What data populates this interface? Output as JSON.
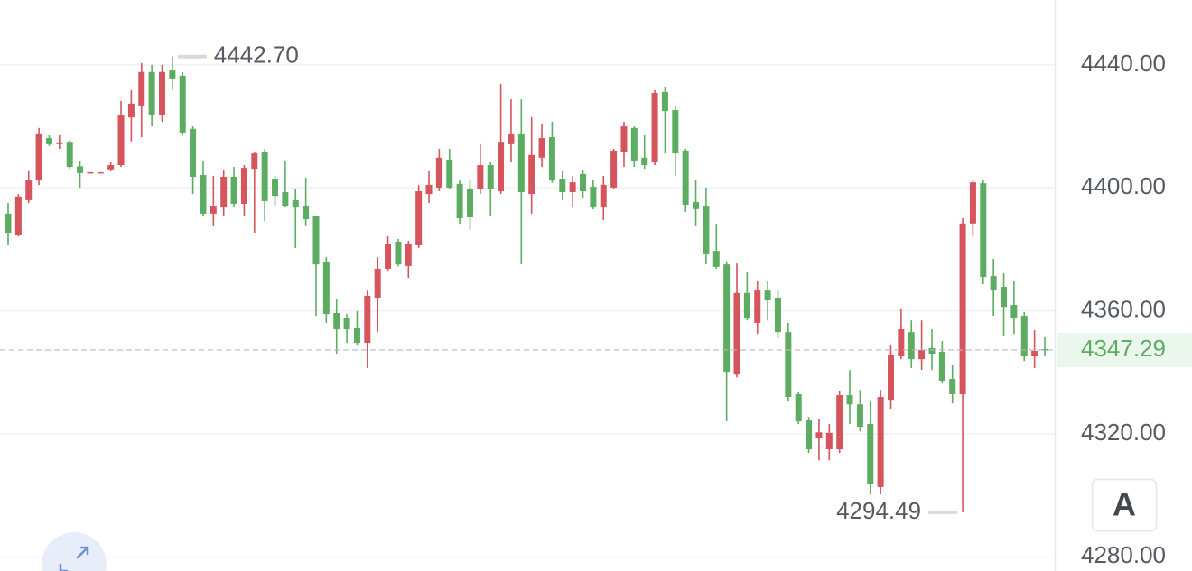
{
  "chart_data": {
    "type": "candlestick",
    "up_color": "#d6545c",
    "down_color": "#5cad62",
    "ylim": [
      4275.4,
      4461.1
    ],
    "yticks": [
      {
        "value": 4440,
        "label": "4440.00"
      },
      {
        "value": 4400,
        "label": "4400.00"
      },
      {
        "value": 4360,
        "label": "4360.00"
      },
      {
        "value": 4320,
        "label": "4320.00"
      },
      {
        "value": 4280,
        "label": "4280.00"
      }
    ],
    "grid": true,
    "last_price": 4347.29,
    "max_label": {
      "value": 4442.7,
      "label": "4442.70"
    },
    "min_label": 4294.49,
    "button_label": "A",
    "open": [
      4391.6,
      4384.8,
      4396.0,
      4402.4,
      4416.2,
      4414.2,
      4415.0,
      4407.0,
      4405.1,
      4405.1,
      4406.0,
      4407.4,
      4422.9,
      4426.8,
      4437.7,
      4423.6,
      4438.2,
      4436.5,
      4419.2,
      4404.2,
      4391.6,
      4393.6,
      4403.6,
      4394.8,
      4406.2,
      4411.8,
      4403.0,
      4398.6,
      4396.0,
      4394.2,
      4390.7,
      4376.0,
      4359.3,
      4357.8,
      4354.3,
      4349.6,
      4364.3,
      4373.7,
      4382.5,
      4374.6,
      4381.3,
      4398.0,
      4400.1,
      4409.2,
      4401.3,
      4399.5,
      4399.5,
      4407.4,
      4398.9,
      4414.2,
      4417.7,
      4398.0,
      4409.8,
      4416.5,
      4403.0,
      4398.6,
      4404.5,
      4400.4,
      4393.6,
      4400.1,
      4411.8,
      4419.5,
      4409.8,
      4408.3,
      4431.2,
      4425.3,
      4412.1,
      4395.4,
      4394.2,
      4379.5,
      4375.1,
      4339.3,
      4365.8,
      4356.1,
      4366.6,
      4364.3,
      4353.1,
      4332.9,
      4324.4,
      4318.5,
      4315.0,
      4315.0,
      4332.6,
      4329.6,
      4323.2,
      4302.7,
      4331.1,
      4345.2,
      4353.1,
      4344.3,
      4347.9,
      4346.7,
      4337.9,
      4332.9,
      4388.4,
      4401.5,
      4371.3,
      4367.8,
      4361.9,
      4358.4,
      4345.2,
      4347.6
    ],
    "close": [
      4385.4,
      4397.2,
      4402.4,
      4417.7,
      4414.2,
      4414.8,
      4406.8,
      4404.8,
      4405.1,
      4405.1,
      4407.4,
      4423.6,
      4427.4,
      4437.7,
      4423.6,
      4437.7,
      4435.3,
      4418.0,
      4403.6,
      4391.6,
      4394.2,
      4403.6,
      4394.8,
      4406.5,
      4411.2,
      4395.7,
      4397.4,
      4394.2,
      4393.6,
      4389.8,
      4375.1,
      4359.0,
      4354.0,
      4354.0,
      4349.6,
      4364.9,
      4373.7,
      4381.9,
      4375.1,
      4381.9,
      4398.9,
      4401.0,
      4409.8,
      4400.1,
      4390.1,
      4390.4,
      4407.4,
      4399.5,
      4415.0,
      4417.7,
      4398.6,
      4410.7,
      4416.2,
      4402.4,
      4398.6,
      4401.8,
      4398.9,
      4393.6,
      4401.0,
      4412.1,
      4420.0,
      4408.9,
      4407.4,
      4430.9,
      4425.0,
      4411.2,
      4394.5,
      4393.1,
      4378.4,
      4374.3,
      4340.2,
      4365.8,
      4357.5,
      4366.6,
      4363.4,
      4353.1,
      4332.0,
      4324.1,
      4315.0,
      4320.5,
      4320.3,
      4332.6,
      4329.6,
      4322.3,
      4303.6,
      4332.0,
      4345.8,
      4354.0,
      4344.3,
      4347.3,
      4346.1,
      4337.3,
      4332.9,
      4388.4,
      4401.8,
      4371.0,
      4366.6,
      4361.3,
      4357.8,
      4345.2,
      4347.0,
      4347.29
    ],
    "high": [
      4395.1,
      4398.0,
      4405.4,
      4419.5,
      4417.1,
      4417.1,
      4415.6,
      4408.9,
      4405.1,
      4405.1,
      4408.3,
      4428.3,
      4431.8,
      4440.6,
      4440.0,
      4440.0,
      4442.7,
      4437.6,
      4420.0,
      4408.9,
      4403.9,
      4405.9,
      4406.8,
      4407.4,
      4411.8,
      4412.7,
      4403.9,
      4408.9,
      4399.5,
      4403.3,
      4390.7,
      4377.5,
      4363.7,
      4359.0,
      4359.9,
      4366.6,
      4377.5,
      4384.2,
      4383.4,
      4382.8,
      4400.9,
      4405.4,
      4412.7,
      4412.7,
      4402.4,
      4402.4,
      4414.2,
      4408.3,
      4433.8,
      4428.8,
      4428.8,
      4423.0,
      4420.6,
      4421.5,
      4405.4,
      4403.9,
      4405.9,
      4402.4,
      4403.9,
      4412.7,
      4421.5,
      4420.0,
      4417.1,
      4431.8,
      4432.7,
      4426.5,
      4412.7,
      4402.4,
      4400.1,
      4388.3,
      4376.0,
      4375.4,
      4372.5,
      4369.6,
      4369.6,
      4366.6,
      4356.1,
      4333.5,
      4325.5,
      4324.7,
      4323.2,
      4334.1,
      4340.8,
      4334.3,
      4330.5,
      4334.3,
      4349.0,
      4360.8,
      4356.9,
      4356.9,
      4354.0,
      4350.2,
      4342.3,
      4390.1,
      4402.4,
      4402.4,
      4376.9,
      4372.2,
      4369.6,
      4359.6,
      4353.7,
      4351.4
    ],
    "low": [
      4381.3,
      4384.2,
      4395.1,
      4400.9,
      4413.6,
      4412.7,
      4406.2,
      4400.1,
      4405.1,
      4405.1,
      4405.4,
      4406.8,
      4415.1,
      4416.5,
      4420.0,
      4421.5,
      4431.8,
      4417.1,
      4398.0,
      4390.7,
      4387.8,
      4390.7,
      4393.6,
      4390.7,
      4385.4,
      4389.2,
      4394.2,
      4393.6,
      4380.4,
      4387.8,
      4358.4,
      4356.1,
      4346.1,
      4349.6,
      4348.7,
      4341.4,
      4353.1,
      4373.1,
      4374.5,
      4370.7,
      4380.4,
      4395.1,
      4398.9,
      4399.5,
      4388.3,
      4386.3,
      4398.0,
      4390.7,
      4398.0,
      4408.3,
      4375.1,
      4391.6,
      4406.8,
      4401.6,
      4396.0,
      4393.6,
      4396.6,
      4393.0,
      4389.5,
      4399.5,
      4406.8,
      4406.8,
      4406.2,
      4407.4,
      4411.2,
      4403.9,
      4392.2,
      4387.8,
      4375.1,
      4373.7,
      4324.1,
      4338.4,
      4356.9,
      4352.5,
      4356.9,
      4351.1,
      4330.5,
      4323.2,
      4313.8,
      4311.4,
      4311.4,
      4313.8,
      4323.2,
      4320.8,
      4300.3,
      4300.3,
      4328.2,
      4344.3,
      4341.4,
      4340.8,
      4340.8,
      4336.4,
      4329.9,
      4294.49,
      4384.2,
      4368.7,
      4358.4,
      4352.0,
      4352.5,
      4343.7,
      4341.4,
      4345.2
    ]
  }
}
